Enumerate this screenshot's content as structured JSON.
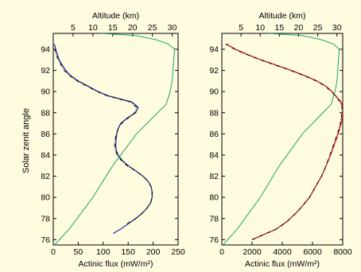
{
  "figure": {
    "background": "#fefbdf"
  },
  "chart_data": [
    {
      "type": "line",
      "panel": "left",
      "ylabel": "Solar zenit angle",
      "xlabel": "Actinic flux (mW/m²)",
      "top_xlabel": "Altitude (km)",
      "xlim": [
        0,
        250
      ],
      "ylim": [
        75.5,
        95.5
      ],
      "xticks": [
        "0",
        "50",
        "100",
        "150",
        "200",
        "250"
      ],
      "top_xlim": [
        0,
        31.5
      ],
      "top_xticks": [
        "5",
        "10",
        "15",
        "20",
        "25",
        "30"
      ],
      "yticks": [
        "76",
        "78",
        "80",
        "82",
        "84",
        "86",
        "88",
        "90",
        "92",
        "94"
      ],
      "series": [
        {
          "role": "measured",
          "color": "#2e3a9e",
          "points": [
            [
              120,
              76.6
            ],
            [
              135,
              77.0
            ],
            [
              150,
              77.5
            ],
            [
              165,
              78.0
            ],
            [
              178,
              78.5
            ],
            [
              188,
              79.0
            ],
            [
              195,
              79.5
            ],
            [
              198,
              80.0
            ],
            [
              198,
              80.5
            ],
            [
              196,
              81.0
            ],
            [
              190,
              81.5
            ],
            [
              180,
              82.0
            ],
            [
              165,
              82.5
            ],
            [
              150,
              83.0
            ],
            [
              138,
              83.5
            ],
            [
              130,
              84.0
            ],
            [
              126,
              84.5
            ],
            [
              125,
              85.0
            ],
            [
              126,
              85.5
            ],
            [
              127,
              86.0
            ],
            [
              130,
              86.5
            ],
            [
              135,
              87.0
            ],
            [
              148,
              87.5
            ],
            [
              165,
              88.0
            ],
            [
              170,
              88.5
            ],
            [
              158,
              89.0
            ],
            [
              135,
              89.3
            ],
            [
              110,
              89.6
            ],
            [
              90,
              90.0
            ],
            [
              70,
              90.5
            ],
            [
              50,
              91.0
            ],
            [
              35,
              91.5
            ],
            [
              25,
              92.0
            ],
            [
              18,
              92.5
            ],
            [
              12,
              93.0
            ],
            [
              8,
              93.5
            ],
            [
              5,
              94.0
            ],
            [
              2,
              94.5
            ]
          ]
        },
        {
          "role": "model",
          "color": "#000000",
          "style": "dash-dot",
          "points": [
            [
              148,
              77.5
            ],
            [
              165,
              78.0
            ],
            [
              178,
              78.5
            ],
            [
              188,
              79.0
            ],
            [
              195,
              79.5
            ],
            [
              198,
              80.0
            ],
            [
              198,
              80.5
            ],
            [
              196,
              81.0
            ],
            [
              190,
              81.5
            ],
            [
              180,
              82.0
            ],
            [
              165,
              82.5
            ],
            [
              148,
              83.0
            ],
            [
              136,
              83.5
            ],
            [
              128,
              84.0
            ],
            [
              124,
              84.5
            ],
            [
              123,
              85.0
            ],
            [
              124,
              85.5
            ],
            [
              126,
              86.0
            ],
            [
              130,
              86.5
            ],
            [
              137,
              87.0
            ],
            [
              150,
              87.5
            ],
            [
              163,
              88.0
            ],
            [
              167,
              88.5
            ],
            [
              155,
              89.0
            ],
            [
              132,
              89.3
            ],
            [
              108,
              89.6
            ],
            [
              88,
              90.0
            ],
            [
              68,
              90.5
            ],
            [
              48,
              91.0
            ],
            [
              33,
              91.5
            ],
            [
              22,
              92.0
            ],
            [
              16,
              92.5
            ],
            [
              10,
              93.0
            ],
            [
              6,
              93.5
            ],
            [
              3,
              94.0
            ]
          ]
        },
        {
          "role": "altitude",
          "color": "#1aa86a",
          "axis": "top",
          "points": [
            [
              0.3,
              75.5
            ],
            [
              4,
              77.0
            ],
            [
              7,
              78.5
            ],
            [
              10,
              80.0
            ],
            [
              12.5,
              81.5
            ],
            [
              15,
              83.0
            ],
            [
              18,
              84.5
            ],
            [
              21,
              86.0
            ],
            [
              25,
              87.5
            ],
            [
              28.5,
              88.8
            ],
            [
              29.5,
              90.0
            ],
            [
              30,
              91.0
            ],
            [
              30.2,
              92.0
            ],
            [
              30.4,
              93.0
            ],
            [
              30.6,
              94.0
            ],
            [
              29,
              94.5
            ],
            [
              26,
              94.9
            ],
            [
              21,
              95.3
            ],
            [
              12,
              95.5
            ]
          ]
        }
      ]
    },
    {
      "type": "line",
      "panel": "right",
      "xlabel": "Actinic flux (mW/m²)",
      "top_xlabel": "Altitude (km)",
      "xlim": [
        0,
        8000
      ],
      "ylim": [
        75.5,
        95.5
      ],
      "xticks": [
        "0",
        "2000",
        "4000",
        "6000",
        "8000"
      ],
      "top_xlim": [
        0,
        31.5
      ],
      "top_xticks": [
        "5",
        "10",
        "15",
        "20",
        "25",
        "30"
      ],
      "yticks": [
        "76",
        "78",
        "80",
        "82",
        "84",
        "86",
        "88",
        "90",
        "92",
        "94"
      ],
      "series": [
        {
          "role": "measured",
          "color": "#e8262a",
          "points": [
            [
              2000,
              76.0
            ],
            [
              2800,
              76.5
            ],
            [
              3600,
              77.0
            ],
            [
              4300,
              77.7
            ],
            [
              4900,
              78.5
            ],
            [
              5400,
              79.3
            ],
            [
              5800,
              80.0
            ],
            [
              6200,
              81.0
            ],
            [
              6600,
              82.0
            ],
            [
              6900,
              83.0
            ],
            [
              7200,
              84.0
            ],
            [
              7450,
              85.0
            ],
            [
              7700,
              86.0
            ],
            [
              7900,
              87.0
            ],
            [
              8000,
              88.0
            ],
            [
              8000,
              88.5
            ],
            [
              7900,
              89.0
            ],
            [
              7600,
              89.5
            ],
            [
              7300,
              90.0
            ],
            [
              6900,
              90.5
            ],
            [
              6300,
              91.0
            ],
            [
              5500,
              91.5
            ],
            [
              4600,
              92.0
            ],
            [
              3600,
              92.5
            ],
            [
              2600,
              93.0
            ],
            [
              1700,
              93.5
            ],
            [
              900,
              94.0
            ],
            [
              300,
              94.5
            ]
          ]
        },
        {
          "role": "model",
          "color": "#000000",
          "style": "dash-dot",
          "points": [
            [
              2000,
              76.0
            ],
            [
              2800,
              76.5
            ],
            [
              3600,
              77.0
            ],
            [
              4300,
              77.7
            ],
            [
              4900,
              78.5
            ],
            [
              5400,
              79.3
            ],
            [
              5800,
              80.0
            ],
            [
              6200,
              81.0
            ],
            [
              6600,
              82.0
            ],
            [
              6900,
              83.0
            ],
            [
              7150,
              84.0
            ],
            [
              7400,
              85.0
            ],
            [
              7650,
              86.0
            ],
            [
              7850,
              87.0
            ],
            [
              7950,
              88.0
            ],
            [
              7950,
              88.5
            ],
            [
              7850,
              89.0
            ],
            [
              7550,
              89.5
            ],
            [
              7250,
              90.0
            ],
            [
              6850,
              90.5
            ],
            [
              6250,
              91.0
            ],
            [
              5450,
              91.5
            ],
            [
              4550,
              92.0
            ],
            [
              3550,
              92.5
            ],
            [
              2550,
              93.0
            ],
            [
              1650,
              93.5
            ],
            [
              850,
              94.0
            ],
            [
              250,
              94.5
            ]
          ]
        },
        {
          "role": "altitude",
          "color": "#1aa86a",
          "axis": "top",
          "points": [
            [
              0.3,
              75.5
            ],
            [
              4,
              77.0
            ],
            [
              7,
              78.5
            ],
            [
              10,
              80.0
            ],
            [
              12.5,
              81.5
            ],
            [
              15,
              83.0
            ],
            [
              18,
              84.5
            ],
            [
              21,
              86.0
            ],
            [
              25,
              87.5
            ],
            [
              28.5,
              88.8
            ],
            [
              29.5,
              90.0
            ],
            [
              30,
              91.0
            ],
            [
              30.2,
              92.0
            ],
            [
              30.4,
              93.0
            ],
            [
              30.6,
              94.0
            ],
            [
              29,
              94.5
            ],
            [
              26,
              94.9
            ],
            [
              21,
              95.3
            ],
            [
              12,
              95.5
            ]
          ]
        }
      ]
    }
  ]
}
